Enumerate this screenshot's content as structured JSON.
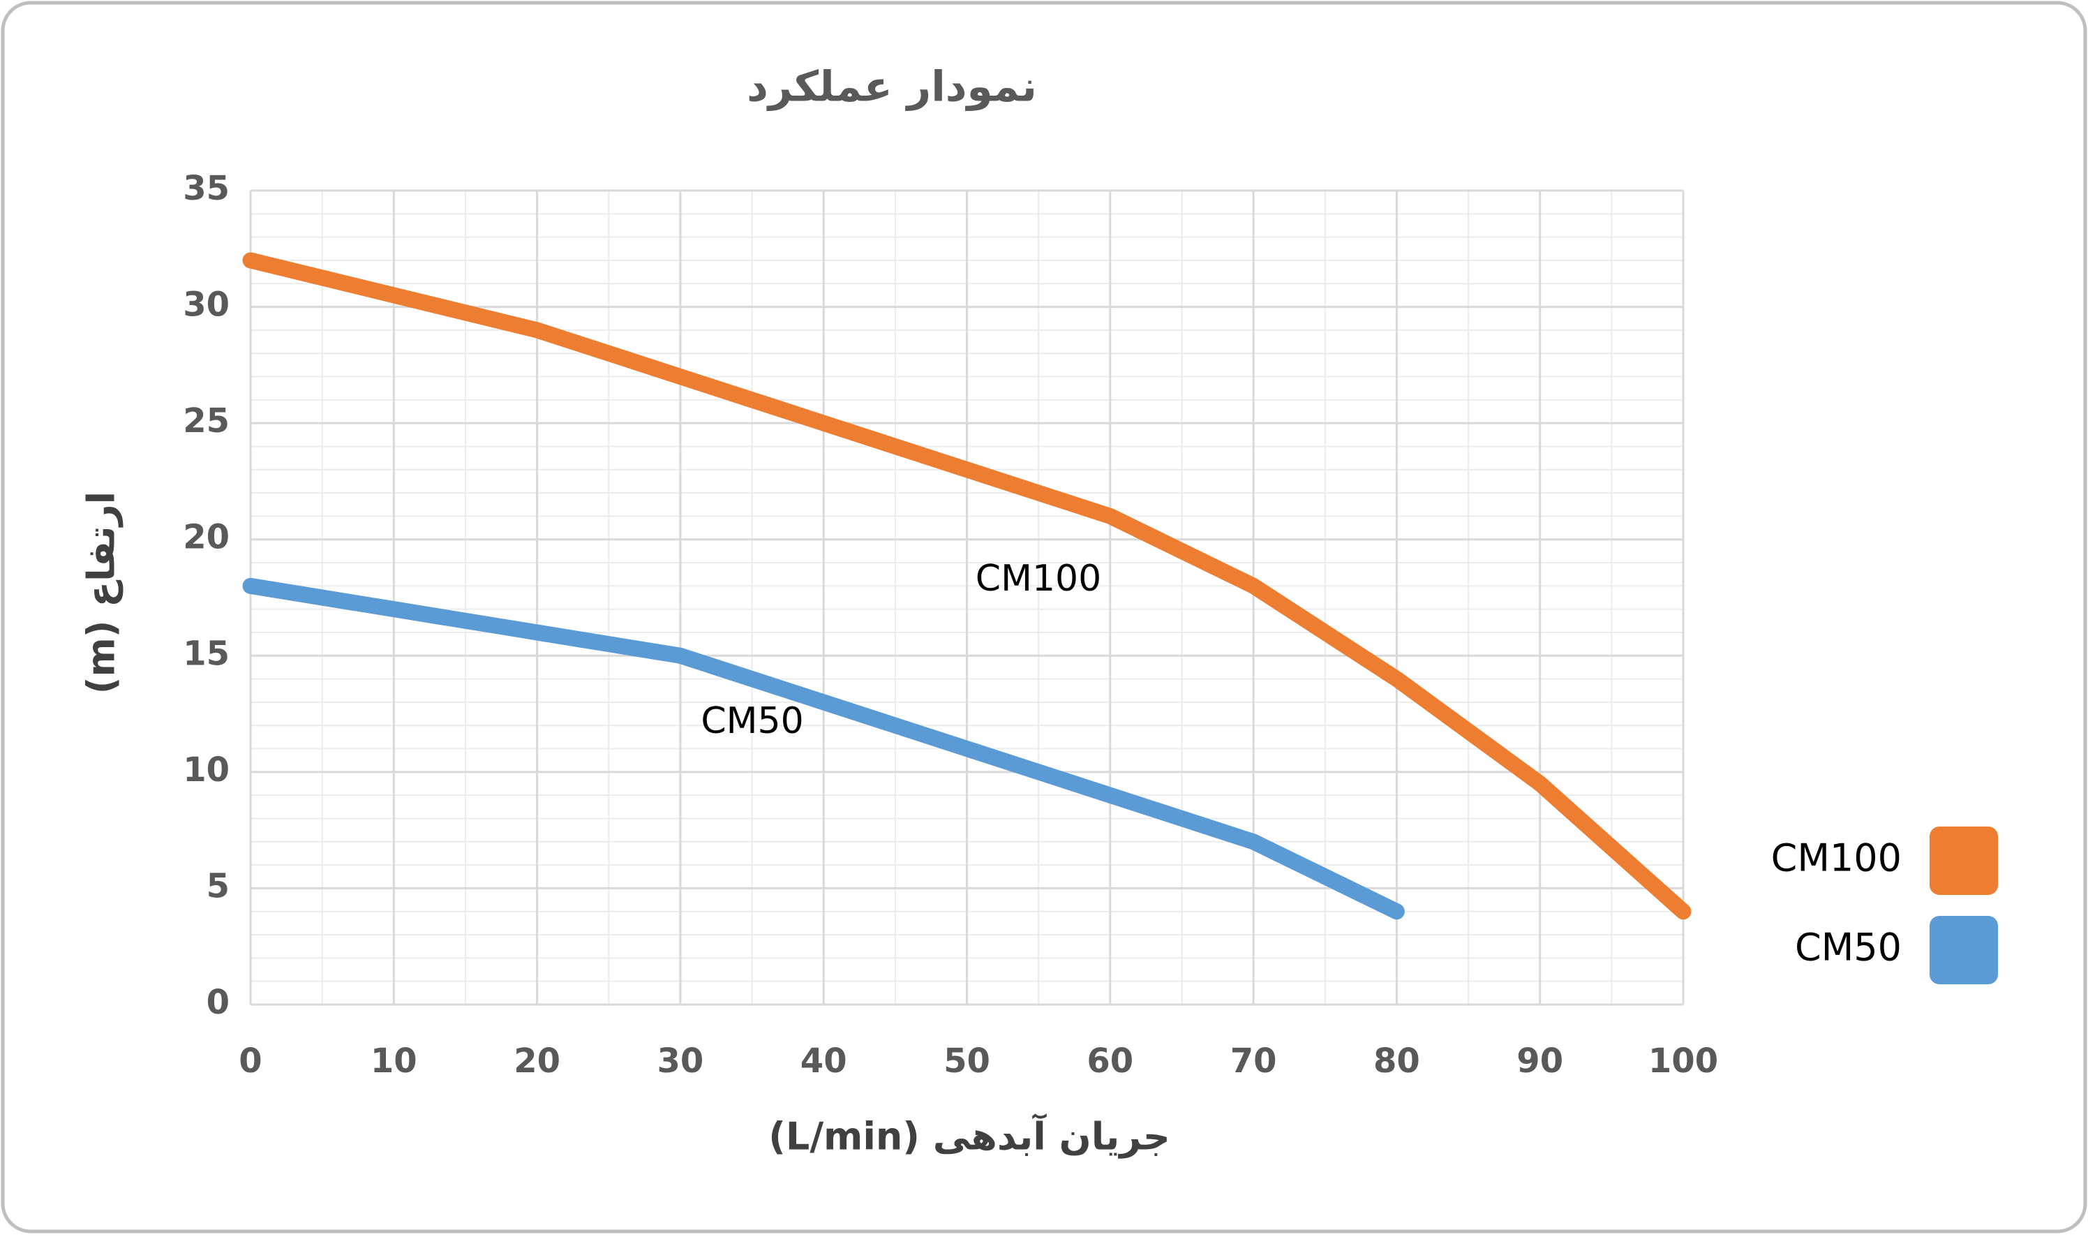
{
  "chart_data": {
    "type": "line",
    "title": "نمودار عملکرد",
    "x_label": "جریان آبدهی (L/min)",
    "y_label": "ارتفاع (m)",
    "x": [
      0,
      10,
      20,
      30,
      40,
      50,
      60,
      70,
      80,
      90,
      100
    ],
    "series": [
      {
        "name": "CM100",
        "color": "#ed7d31",
        "values": [
          32,
          30.5,
          29,
          27,
          25,
          23,
          21,
          18,
          14,
          9.5,
          4
        ]
      },
      {
        "name": "CM50",
        "color": "#5b9bd5",
        "values": [
          18,
          17,
          16,
          15,
          13,
          11,
          9,
          7,
          4,
          null,
          null
        ]
      }
    ],
    "annotations": [
      "CM100",
      "CM50"
    ],
    "xlim": [
      0,
      100
    ],
    "xticks": [
      0,
      10,
      20,
      30,
      40,
      50,
      60,
      70,
      80,
      90,
      100
    ],
    "ylim": [
      0,
      35
    ],
    "yticks": [
      0,
      5,
      10,
      15,
      20,
      25,
      30,
      35
    ],
    "grid": true,
    "minor_grid": true,
    "legend": "right"
  }
}
